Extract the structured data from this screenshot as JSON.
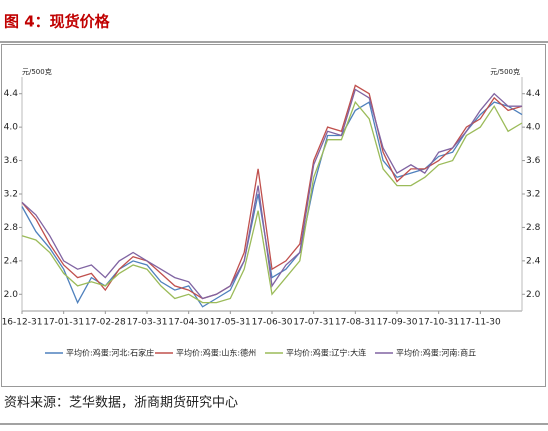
{
  "chart_data": {
    "type": "line",
    "title": "图 4：现货价格",
    "y_label": "元/500克",
    "y2_label": "元/500克",
    "source": "资料来源：芝华数据，浙商期货研究中心",
    "categories": [
      "16-12-31",
      null,
      null,
      "17-01-31",
      null,
      null,
      "17-02-28",
      null,
      null,
      "17-03-31",
      null,
      null,
      "17-04-30",
      null,
      null,
      "17-05-31",
      null,
      null,
      "17-06-30",
      null,
      null,
      "17-07-31",
      null,
      null,
      "17-08-31",
      null,
      null,
      "17-09-30",
      null,
      null,
      "17-10-31",
      null,
      null,
      "17-11-30",
      null,
      null,
      null
    ],
    "series": [
      {
        "name": "平均价:鸡蛋:河北:石家庄",
        "color": "#4f81bd",
        "values": [
          3.05,
          2.75,
          2.55,
          2.3,
          1.9,
          2.2,
          2.1,
          2.3,
          2.4,
          2.35,
          2.15,
          2.05,
          2.1,
          1.85,
          1.95,
          2.05,
          2.4,
          3.2,
          2.2,
          2.3,
          2.5,
          3.3,
          3.9,
          3.9,
          4.2,
          4.3,
          3.6,
          3.4,
          3.45,
          3.5,
          3.65,
          3.7,
          3.95,
          4.15,
          4.3,
          4.25,
          4.15
        ]
      },
      {
        "name": "平均价:鸡蛋:山东:德州",
        "color": "#c0504d",
        "values": [
          3.1,
          2.9,
          2.6,
          2.35,
          2.2,
          2.25,
          2.05,
          2.3,
          2.45,
          2.4,
          2.25,
          2.1,
          2.05,
          1.95,
          2.0,
          2.1,
          2.5,
          3.5,
          2.3,
          2.4,
          2.6,
          3.6,
          4.0,
          3.95,
          4.5,
          4.4,
          3.7,
          3.35,
          3.5,
          3.5,
          3.6,
          3.75,
          4.0,
          4.1,
          4.35,
          4.2,
          4.25
        ]
      },
      {
        "name": "平均价:鸡蛋:辽宁:大连",
        "color": "#9bbb59",
        "values": [
          2.7,
          2.65,
          2.5,
          2.25,
          2.1,
          2.15,
          2.1,
          2.25,
          2.35,
          2.3,
          2.1,
          1.95,
          2.0,
          1.9,
          1.9,
          1.95,
          2.3,
          3.0,
          2.0,
          2.2,
          2.4,
          3.4,
          3.85,
          3.85,
          4.3,
          4.1,
          3.5,
          3.3,
          3.3,
          3.4,
          3.55,
          3.6,
          3.9,
          4.0,
          4.25,
          3.95,
          4.05
        ]
      },
      {
        "name": "平均价:鸡蛋:河南:商丘",
        "color": "#8064a2",
        "values": [
          3.1,
          2.95,
          2.7,
          2.4,
          2.3,
          2.35,
          2.2,
          2.4,
          2.5,
          2.4,
          2.3,
          2.2,
          2.15,
          1.95,
          2.0,
          2.1,
          2.4,
          3.3,
          2.1,
          2.35,
          2.5,
          3.55,
          3.95,
          3.9,
          4.45,
          4.35,
          3.75,
          3.45,
          3.55,
          3.45,
          3.7,
          3.75,
          3.95,
          4.2,
          4.4,
          4.25,
          4.25
        ]
      }
    ],
    "ylim": [
      1.8,
      4.6
    ],
    "yticks": [
      {
        "value": 2.0,
        "label": "2.0"
      },
      2.4,
      2.8,
      3.2,
      3.6,
      {
        "value": 4.0,
        "label": "4.0"
      },
      4.4
    ],
    "y2lim": [
      1.8,
      4.6
    ],
    "y2ticks": [
      {
        "value": 2.0,
        "label": "2.0"
      },
      2.4,
      2.8,
      3.2,
      3.6,
      {
        "value": 4.0,
        "label": "4.0"
      },
      4.4
    ],
    "grid": false
  }
}
